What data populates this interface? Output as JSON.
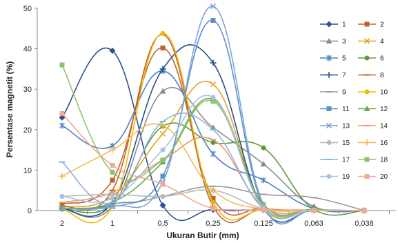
{
  "chart_data": {
    "type": "line",
    "xlabel": "Ukuran Butir (mm)",
    "ylabel": "Persentase magnetit (%)",
    "categories": [
      "2",
      "1",
      "0,5",
      "0,25",
      "0,125",
      "0,063",
      "0,038"
    ],
    "ylim": [
      0,
      50
    ],
    "yticks": [
      0,
      10,
      20,
      30,
      40,
      50
    ],
    "grid": false,
    "legend": "right",
    "series": [
      {
        "name": "1",
        "color": "#2E4F8F",
        "marker": "diamond",
        "values": [
          23.0,
          39.5,
          1.3,
          0.2,
          0.1,
          0.0,
          0.0
        ]
      },
      {
        "name": "2",
        "color": "#C0622B",
        "marker": "square",
        "values": [
          1.5,
          7.5,
          40.2,
          3.0,
          0.5,
          0.1,
          0.0
        ]
      },
      {
        "name": "3",
        "color": "#8A8A8A",
        "marker": "triangle",
        "values": [
          0.5,
          1.0,
          29.5,
          20.5,
          11.5,
          1.0,
          0.0
        ]
      },
      {
        "name": "4",
        "color": "#E2A21B",
        "marker": "x",
        "values": [
          0.8,
          3.5,
          19.0,
          31.2,
          1.0,
          0.2,
          0.0
        ]
      },
      {
        "name": "5",
        "color": "#4A7EC5",
        "marker": "star",
        "values": [
          21.0,
          16.0,
          34.5,
          14.0,
          7.5,
          0.5,
          0.0
        ]
      },
      {
        "name": "6",
        "color": "#5A9A3A",
        "marker": "circle",
        "values": [
          0.5,
          1.5,
          20.8,
          16.8,
          15.5,
          0.3,
          0.0
        ]
      },
      {
        "name": "7",
        "color": "#2A4F8A",
        "marker": "plus",
        "values": [
          0.5,
          2.0,
          35.0,
          36.5,
          0.5,
          0.0,
          0.0
        ]
      },
      {
        "name": "8",
        "color": "#C0622B",
        "marker": "dash",
        "values": [
          1.0,
          5.0,
          43.5,
          1.0,
          0.3,
          0.0,
          0.0
        ]
      },
      {
        "name": "9",
        "color": "#9A9A9A",
        "marker": "dash",
        "values": [
          0.5,
          1.0,
          3.5,
          6.0,
          4.0,
          3.2,
          0.0
        ]
      },
      {
        "name": "10",
        "color": "#F0B800",
        "marker": "circle",
        "values": [
          0.3,
          1.0,
          43.8,
          2.0,
          0.1,
          0.0,
          0.0
        ]
      },
      {
        "name": "11",
        "color": "#5B8FCC",
        "marker": "square",
        "values": [
          0.5,
          1.5,
          8.5,
          47.0,
          1.0,
          0.2,
          0.0
        ]
      },
      {
        "name": "12",
        "color": "#6AAA4A",
        "marker": "triangle",
        "values": [
          0.5,
          2.0,
          12.0,
          27.5,
          1.5,
          0.3,
          0.0
        ]
      },
      {
        "name": "13",
        "color": "#7AA3D9",
        "marker": "x",
        "values": [
          0.5,
          1.0,
          7.0,
          50.5,
          1.5,
          0.1,
          0.0
        ]
      },
      {
        "name": "14",
        "color": "#E89A6A",
        "marker": "dash",
        "values": [
          2.0,
          4.5,
          12.5,
          17.5,
          1.0,
          0.1,
          0.0
        ]
      },
      {
        "name": "15",
        "color": "#B8B8B8",
        "marker": "circle",
        "values": [
          3.5,
          4.0,
          3.5,
          5.0,
          0.5,
          0.1,
          0.0
        ]
      },
      {
        "name": "16",
        "color": "#F0BE50",
        "marker": "plus",
        "values": [
          8.5,
          15.0,
          21.0,
          5.0,
          0.3,
          0.0,
          0.0
        ]
      },
      {
        "name": "17",
        "color": "#8BB0E0",
        "marker": "dash",
        "values": [
          12.0,
          2.0,
          22.0,
          20.0,
          0.5,
          0.0,
          0.0
        ]
      },
      {
        "name": "18",
        "color": "#8FC070",
        "marker": "square",
        "values": [
          36.0,
          9.5,
          12.5,
          27.0,
          1.0,
          0.1,
          0.0
        ]
      },
      {
        "name": "19",
        "color": "#A8C0E8",
        "marker": "circle",
        "values": [
          3.5,
          3.0,
          15.0,
          28.0,
          0.5,
          0.1,
          0.0
        ]
      },
      {
        "name": "20",
        "color": "#F2A896",
        "marker": "square",
        "values": [
          24.0,
          11.2,
          6.5,
          0.5,
          0.2,
          0.0,
          0.0
        ]
      }
    ]
  }
}
